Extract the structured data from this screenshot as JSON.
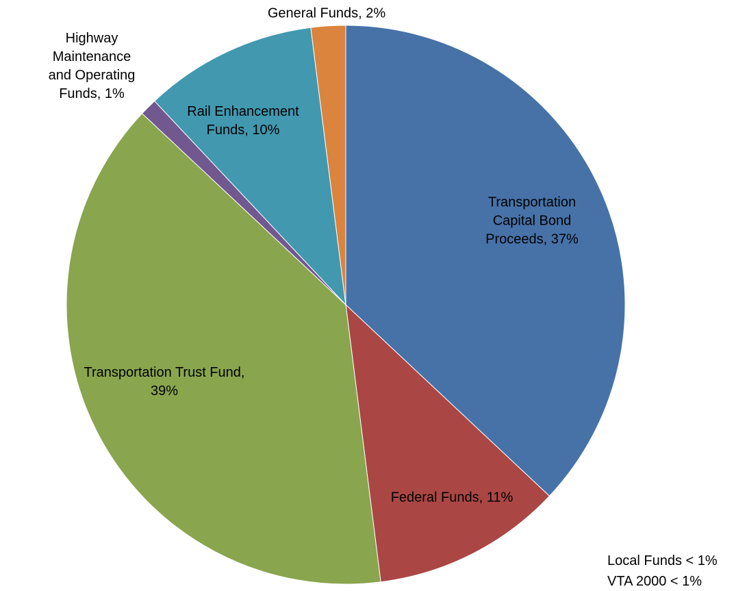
{
  "chart_data": {
    "type": "pie",
    "values": [
      37,
      11,
      39,
      1,
      10,
      2
    ],
    "value_labels": [
      "Transportation Capital Bond Proceeds, 37%",
      "Federal Funds, 11%",
      "Transportation Trust Fund, 39%",
      "Highway Maintenance and Operating Funds, 1%",
      "Rail Enhancement Funds, 10%",
      "General Funds, 2%"
    ],
    "colors": [
      "#4672a8",
      "#aa4744",
      "#89a54e",
      "#71588f",
      "#4198af",
      "#db843d"
    ],
    "annotations": [
      "Local Funds < 1%",
      "VTA 2000 < 1%"
    ]
  }
}
